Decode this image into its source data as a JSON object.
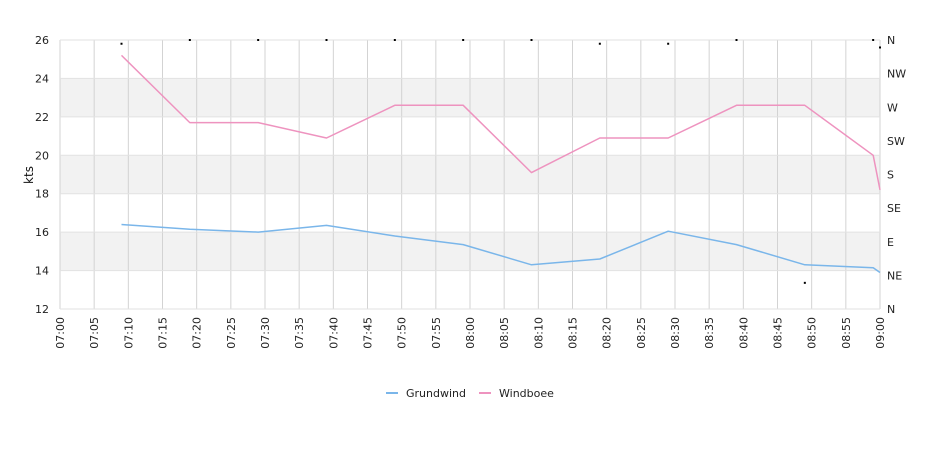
{
  "chart_data": {
    "type": "line",
    "ylabel": "kts",
    "ylim": [
      12,
      26
    ],
    "yticks": [
      12,
      14,
      16,
      18,
      20,
      22,
      24,
      26
    ],
    "x_range": [
      "07:00",
      "09:00"
    ],
    "xticks": [
      "07:00",
      "07:05",
      "07:10",
      "07:15",
      "07:20",
      "07:25",
      "07:30",
      "07:35",
      "07:40",
      "07:45",
      "07:50",
      "07:55",
      "08:00",
      "08:05",
      "08:10",
      "08:15",
      "08:20",
      "08:25",
      "08:30",
      "08:35",
      "08:40",
      "08:45",
      "08:50",
      "08:55",
      "09:00"
    ],
    "right_axis_labels": [
      "N",
      "NE",
      "E",
      "SE",
      "S",
      "SW",
      "W",
      "NW",
      "N"
    ],
    "right_axis_range": [
      0,
      360
    ],
    "banded_background": true,
    "grid": true,
    "legend_position": "bottom-center",
    "series": [
      {
        "name": "Grundwind",
        "color": "#7ab6ea",
        "points": [
          {
            "x": "07:09",
            "y": 16.4
          },
          {
            "x": "07:19",
            "y": 16.15
          },
          {
            "x": "07:29",
            "y": 16.0
          },
          {
            "x": "07:39",
            "y": 16.35
          },
          {
            "x": "07:49",
            "y": 15.8
          },
          {
            "x": "07:59",
            "y": 15.35
          },
          {
            "x": "08:09",
            "y": 14.3
          },
          {
            "x": "08:19",
            "y": 14.6
          },
          {
            "x": "08:29",
            "y": 16.05
          },
          {
            "x": "08:39",
            "y": 15.35
          },
          {
            "x": "08:49",
            "y": 14.3
          },
          {
            "x": "08:59",
            "y": 14.15
          },
          {
            "x": "09:00",
            "y": 13.9
          }
        ]
      },
      {
        "name": "Windboee",
        "color": "#ee93bf",
        "points": [
          {
            "x": "07:09",
            "y": 25.2
          },
          {
            "x": "07:19",
            "y": 21.7
          },
          {
            "x": "07:29",
            "y": 21.7
          },
          {
            "x": "07:39",
            "y": 20.9
          },
          {
            "x": "07:49",
            "y": 22.6
          },
          {
            "x": "07:59",
            "y": 22.6
          },
          {
            "x": "08:09",
            "y": 19.1
          },
          {
            "x": "08:19",
            "y": 20.9
          },
          {
            "x": "08:29",
            "y": 20.9
          },
          {
            "x": "08:39",
            "y": 22.6
          },
          {
            "x": "08:49",
            "y": 22.6
          },
          {
            "x": "08:59",
            "y": 20.0
          },
          {
            "x": "09:00",
            "y": 18.2
          }
        ]
      }
    ],
    "direction_markers": [
      {
        "x": "07:09",
        "deg": 355
      },
      {
        "x": "07:19",
        "deg": 360
      },
      {
        "x": "07:29",
        "deg": 360
      },
      {
        "x": "07:39",
        "deg": 360
      },
      {
        "x": "07:49",
        "deg": 360
      },
      {
        "x": "07:59",
        "deg": 360
      },
      {
        "x": "08:09",
        "deg": 360
      },
      {
        "x": "08:19",
        "deg": 355
      },
      {
        "x": "08:29",
        "deg": 355
      },
      {
        "x": "08:39",
        "deg": 360
      },
      {
        "x": "08:49",
        "deg": 35
      },
      {
        "x": "08:59",
        "deg": 360
      },
      {
        "x": "09:00",
        "deg": 350
      }
    ]
  }
}
